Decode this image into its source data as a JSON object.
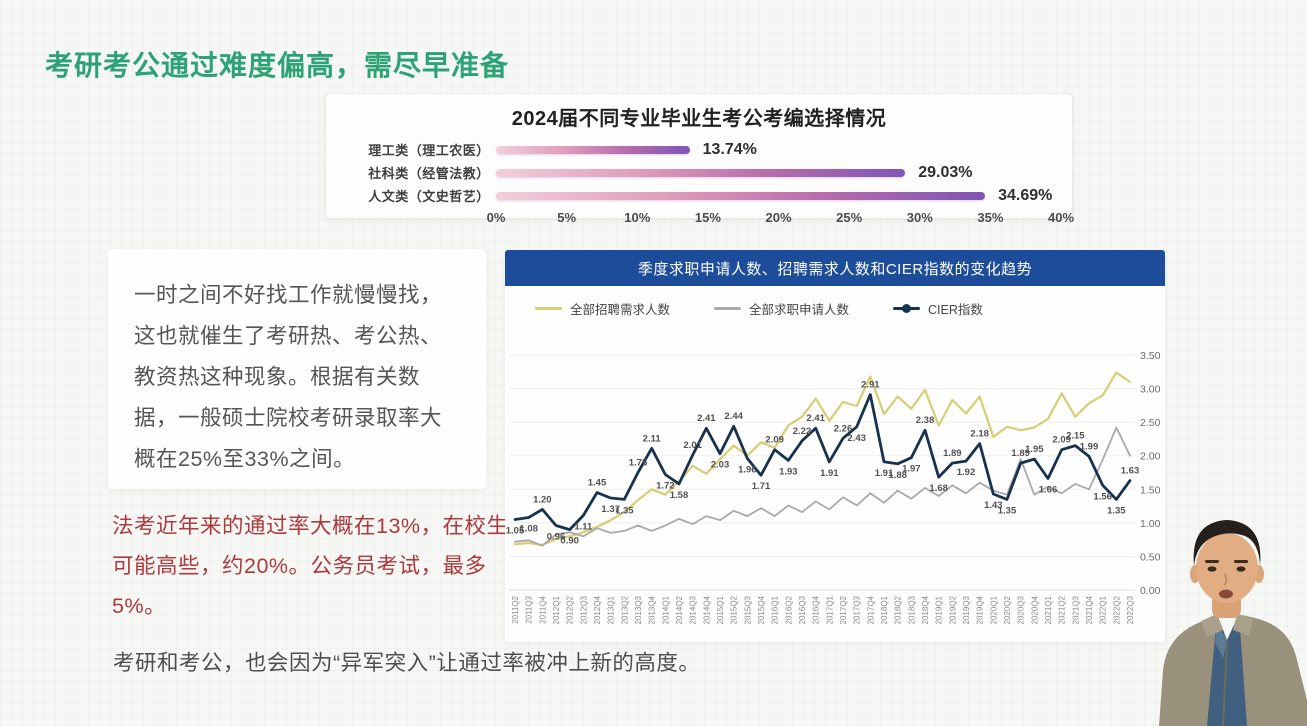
{
  "page": {
    "title": "考研考公通过难度偏高，需尽早准备",
    "bottom_note": "考研和考公，也会因为“异军突入”让通过率被冲上新的高度。"
  },
  "quote_card": {
    "text": "一时之间不好找工作就慢慢找，这也就催生了考研热、考公热、教资热这种现象。根据有关数据，一般硕士院校考研录取率大概在25%至33%之间。"
  },
  "warning": {
    "text": "法考近年来的通过率大概在13%，在校生可能高些，约20%。公务员考试，最多5%。"
  },
  "colors": {
    "title_green": "#2ca377",
    "warning_red": "#ac393c",
    "trend_header_blue": "#1d4d9a",
    "bar_gradient_start": "#f2cfda",
    "bar_gradient_end": "#7e55b5"
  },
  "chart_data": [
    {
      "type": "bar",
      "orientation": "horizontal",
      "title": "2024届不同专业毕业生考公考编选择情况",
      "categories": [
        "理工类（理工农医）",
        "社科类（经管法教）",
        "人文类（文史哲艺）"
      ],
      "values": [
        13.74,
        29.03,
        34.69
      ],
      "value_labels": [
        "13.74%",
        "29.03%",
        "34.69%"
      ],
      "xlim": [
        0,
        40
      ],
      "x_ticks": [
        "0%",
        "5%",
        "10%",
        "15%",
        "20%",
        "25%",
        "30%",
        "35%",
        "40%"
      ],
      "grid": false
    },
    {
      "type": "line",
      "title": "季度求职申请人数、招聘需求人数和CIER指数的变化趋势",
      "categories": [
        "2011Q2",
        "2011Q3",
        "2011Q4",
        "2012Q1",
        "2012Q2",
        "2012Q3",
        "2012Q4",
        "2013Q1",
        "2013Q2",
        "2013Q3",
        "2013Q4",
        "2014Q1",
        "2014Q2",
        "2014Q3",
        "2014Q4",
        "2015Q1",
        "2015Q2",
        "2015Q3",
        "2015Q4",
        "2016Q1",
        "2016Q2",
        "2016Q3",
        "2016Q4",
        "2017Q1",
        "2017Q2",
        "2017Q3",
        "2017Q4",
        "2018Q1",
        "2018Q2",
        "2018Q3",
        "2018Q4",
        "2019Q1",
        "2019Q2",
        "2019Q3",
        "2019Q4",
        "2020Q1",
        "2020Q2",
        "2020Q3",
        "2020Q4",
        "2021Q1",
        "2021Q2",
        "2021Q3",
        "2021Q4",
        "2022Q1",
        "2022Q2",
        "2022Q3"
      ],
      "series": [
        {
          "name": "全部招聘需求人数",
          "color": "#d8cd72",
          "labeled": false,
          "values": [
            0.68,
            0.7,
            0.67,
            0.76,
            0.8,
            0.86,
            0.94,
            1.04,
            1.16,
            1.34,
            1.5,
            1.42,
            1.62,
            1.85,
            1.73,
            1.95,
            2.15,
            2.0,
            2.2,
            2.12,
            2.45,
            2.58,
            2.85,
            2.52,
            2.8,
            2.74,
            3.18,
            2.62,
            2.88,
            2.7,
            2.98,
            2.45,
            2.83,
            2.63,
            2.88,
            2.28,
            2.43,
            2.38,
            2.42,
            2.55,
            2.93,
            2.58,
            2.78,
            2.9,
            3.24,
            3.1
          ]
        },
        {
          "name": "全部求职申请人数",
          "color": "#a9a9a9",
          "labeled": false,
          "values": [
            0.72,
            0.74,
            0.66,
            0.83,
            0.86,
            0.8,
            0.92,
            0.85,
            0.88,
            0.96,
            0.88,
            0.96,
            1.06,
            0.98,
            1.1,
            1.04,
            1.18,
            1.1,
            1.22,
            1.1,
            1.26,
            1.16,
            1.32,
            1.2,
            1.38,
            1.26,
            1.44,
            1.3,
            1.48,
            1.36,
            1.52,
            1.4,
            1.56,
            1.44,
            1.6,
            1.48,
            1.42,
            1.95,
            1.42,
            1.54,
            1.44,
            1.58,
            1.5,
            1.94,
            2.42,
            2.0
          ]
        },
        {
          "name": "CIER指数",
          "color": "#17324e",
          "labeled": true,
          "values": [
            1.05,
            1.08,
            1.2,
            0.96,
            0.9,
            1.11,
            1.45,
            1.37,
            1.35,
            1.75,
            2.11,
            1.72,
            1.58,
            2.01,
            2.41,
            2.03,
            2.44,
            1.96,
            1.71,
            2.09,
            1.93,
            2.22,
            2.41,
            1.91,
            2.26,
            2.43,
            2.91,
            1.91,
            1.88,
            1.97,
            2.38,
            1.68,
            1.89,
            1.92,
            2.18,
            1.43,
            1.35,
            1.89,
            1.95,
            1.66,
            2.09,
            2.15,
            1.99,
            1.56,
            1.35,
            1.63
          ]
        }
      ],
      "ylim": [
        0,
        3.5
      ],
      "y_ticks": [
        "0.00",
        "0.50",
        "1.00",
        "1.50",
        "2.00",
        "2.50",
        "3.00",
        "3.50"
      ],
      "y_axis_side": "right",
      "legend_position": "top-left",
      "grid": true
    }
  ]
}
